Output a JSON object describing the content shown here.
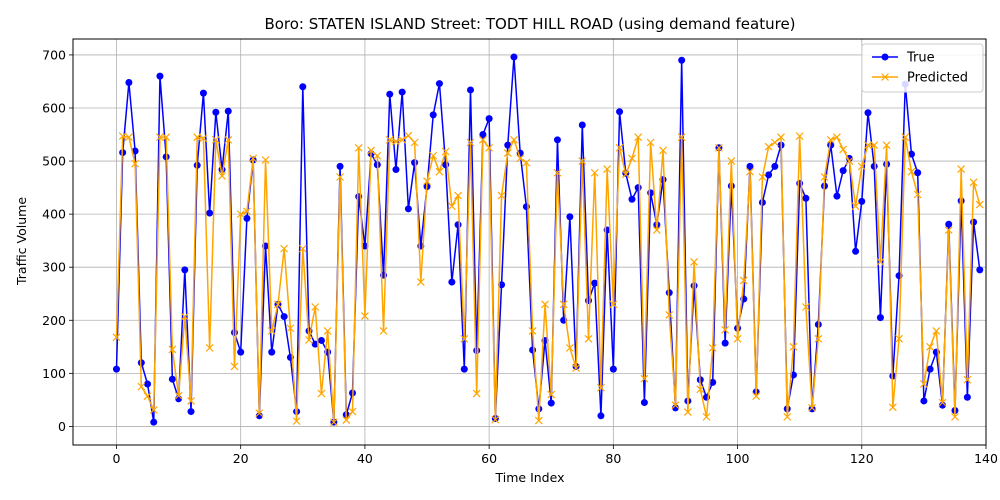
{
  "chart_data": {
    "type": "line",
    "title": "Boro: STATEN ISLAND Street: TODT HILL ROAD (using demand feature)",
    "xlabel": "Time Index",
    "ylabel": "Traffic Volume",
    "xlim": [
      -7,
      140
    ],
    "ylim": [
      -35,
      730
    ],
    "xticks": [
      0,
      20,
      40,
      60,
      80,
      100,
      120,
      140
    ],
    "yticks": [
      0,
      100,
      200,
      300,
      400,
      500,
      600,
      700
    ],
    "xtick_labels": [
      "0",
      "20",
      "40",
      "60",
      "80",
      "100",
      "120",
      "140"
    ],
    "ytick_labels": [
      "0",
      "100",
      "200",
      "300",
      "400",
      "500",
      "600",
      "700"
    ],
    "grid": true,
    "legend_position": "top-right",
    "series": [
      {
        "name": "True",
        "color": "#0000ff",
        "marker": "circle",
        "values": [
          108,
          516,
          648,
          519,
          120,
          80,
          8,
          660,
          508,
          89,
          52,
          295,
          28,
          492,
          628,
          402,
          592,
          484,
          594,
          177,
          140,
          392,
          502,
          20,
          340,
          140,
          230,
          207,
          130,
          28,
          640,
          180,
          155,
          162,
          140,
          8,
          490,
          22,
          63,
          433,
          340,
          514,
          493,
          285,
          626,
          484,
          630,
          410,
          497,
          340,
          452,
          587,
          646,
          493,
          272,
          380,
          108,
          634,
          143,
          550,
          580,
          15,
          267,
          530,
          696,
          515,
          414,
          144,
          33,
          162,
          44,
          540,
          200,
          395,
          113,
          568,
          237,
          270,
          20,
          370,
          108,
          593,
          477,
          428,
          450,
          45,
          440,
          380,
          465,
          252,
          35,
          690,
          48,
          265,
          88,
          55,
          83,
          525,
          157,
          453,
          185,
          240,
          490,
          65,
          422,
          474,
          490,
          530,
          33,
          97,
          458,
          430,
          33,
          192,
          453,
          530,
          434,
          482,
          505,
          330,
          424,
          591,
          490,
          205,
          494,
          95,
          284,
          645,
          513,
          478,
          48,
          108,
          140,
          40,
          381,
          30,
          425,
          55,
          385,
          295
        ]
      },
      {
        "name": "Predicted",
        "color": "#ffa500",
        "marker": "x",
        "values": [
          168,
          547,
          545,
          495,
          75,
          57,
          31,
          545,
          545,
          145,
          58,
          207,
          48,
          545,
          543,
          148,
          540,
          472,
          540,
          113,
          400,
          405,
          505,
          25,
          502,
          180,
          230,
          335,
          185,
          10,
          335,
          163,
          225,
          62,
          180,
          8,
          470,
          12,
          28,
          525,
          208,
          520,
          510,
          180,
          540,
          537,
          540,
          548,
          535,
          272,
          462,
          510,
          480,
          518,
          415,
          435,
          165,
          535,
          62,
          540,
          525,
          13,
          435,
          515,
          540,
          505,
          497,
          180,
          11,
          230,
          60,
          478,
          230,
          148,
          110,
          500,
          165,
          478,
          73,
          485,
          230,
          525,
          475,
          505,
          545,
          90,
          535,
          370,
          520,
          210,
          40,
          545,
          27,
          310,
          70,
          18,
          148,
          525,
          182,
          500,
          165,
          275,
          480,
          57,
          470,
          527,
          535,
          545,
          18,
          150,
          547,
          225,
          35,
          165,
          470,
          540,
          545,
          522,
          500,
          415,
          490,
          530,
          530,
          310,
          530,
          36,
          165,
          545,
          480,
          437,
          80,
          150,
          180,
          45,
          370,
          18,
          485,
          88,
          460,
          418
        ]
      }
    ]
  }
}
